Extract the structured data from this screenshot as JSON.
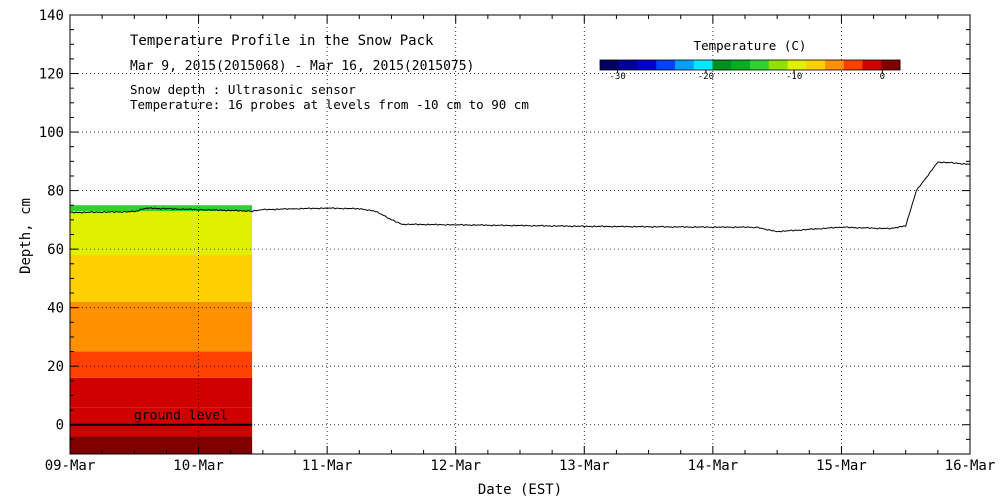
{
  "chart_data": {
    "type": "area",
    "title": "Temperature Profile in the Snow Pack",
    "subtitle": "Mar  9, 2015(2015068) - Mar 16, 2015(2015075)",
    "notes": [
      "Snow depth : Ultrasonic sensor",
      "Temperature: 16 probes at levels from -10 cm to 90 cm"
    ],
    "xlabel": "Date (EST)",
    "ylabel": "Depth, cm",
    "xlim": [
      "2015-03-09",
      "2015-03-16"
    ],
    "x_ticks": [
      "09-Mar",
      "10-Mar",
      "11-Mar",
      "12-Mar",
      "13-Mar",
      "14-Mar",
      "15-Mar",
      "16-Mar"
    ],
    "ylim": [
      -10,
      140
    ],
    "y_ticks": [
      0,
      20,
      40,
      60,
      80,
      100,
      120,
      140
    ],
    "grid": true,
    "annotation": {
      "text": "ground level",
      "y": 0
    },
    "colorbar": {
      "title": "Temperature (C)",
      "range": [
        -32,
        2
      ],
      "tick_values": [
        -30,
        -20,
        -10,
        0
      ],
      "tick_labels": [
        "-30",
        "-20",
        "-10",
        "0"
      ],
      "colors": [
        "#000060",
        "#00009c",
        "#0000d0",
        "#0040ff",
        "#00a0ff",
        "#00e8ff",
        "#009020",
        "#00b020",
        "#30d030",
        "#90e000",
        "#e0f000",
        "#ffd000",
        "#ff9000",
        "#ff4000",
        "#d00000",
        "#800000"
      ]
    },
    "snow_depth_series": {
      "name": "Snow depth",
      "x": [
        "2015-03-09 00:00",
        "2015-03-09 12:00",
        "2015-03-09 14:00",
        "2015-03-10 00:00",
        "2015-03-10 10:00",
        "2015-03-10 12:00",
        "2015-03-10 18:00",
        "2015-03-11 00:00",
        "2015-03-11 06:00",
        "2015-03-11 09:00",
        "2015-03-11 12:00",
        "2015-03-11 14:00",
        "2015-03-12 00:00",
        "2015-03-13 00:00",
        "2015-03-14 00:00",
        "2015-03-14 08:00",
        "2015-03-14 12:00",
        "2015-03-15 00:00",
        "2015-03-15 09:00",
        "2015-03-15 12:00",
        "2015-03-15 14:00",
        "2015-03-15 18:00",
        "2015-03-16 00:00"
      ],
      "y": [
        72.5,
        72.8,
        74.0,
        73.5,
        73.0,
        73.5,
        73.8,
        74.0,
        73.8,
        73.0,
        70.0,
        68.5,
        68.3,
        67.8,
        67.5,
        67.5,
        66.0,
        67.5,
        67.0,
        68.0,
        80.0,
        89.8,
        89.0
      ]
    },
    "temperature_profile": {
      "x_range": [
        "2015-03-09 00:00",
        "2015-03-10 10:00"
      ],
      "bands": [
        {
          "from": -10,
          "to": -4,
          "temperature": 0
        },
        {
          "from": -4,
          "to": 6,
          "temperature": -1
        },
        {
          "from": 6,
          "to": 16,
          "temperature": -2
        },
        {
          "from": 16,
          "to": 25,
          "temperature": -3
        },
        {
          "from": 25,
          "to": 42,
          "temperature": -6
        },
        {
          "from": 42,
          "to": 58,
          "temperature": -8
        },
        {
          "from": 58,
          "to": 73,
          "temperature": -10
        },
        {
          "from": 73,
          "to": 75,
          "temperature": -14
        }
      ]
    }
  }
}
